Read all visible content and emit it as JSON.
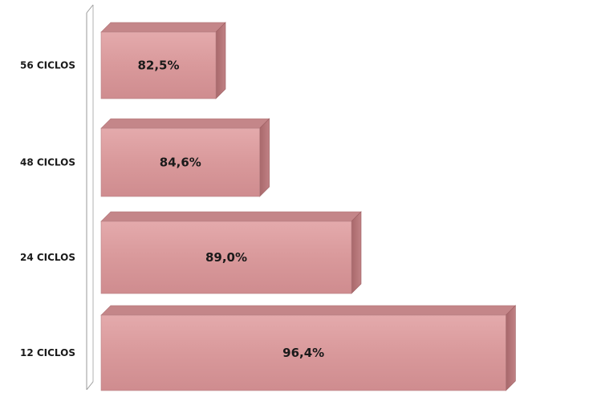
{
  "chart_data": {
    "type": "bar",
    "orientation": "horizontal",
    "style": "3d",
    "categories": [
      "12 CICLOS",
      "24 CICLOS",
      "48 CICLOS",
      "56 CICLOS"
    ],
    "values": [
      96.4,
      89.0,
      84.6,
      82.5
    ],
    "value_labels": [
      "96,4%",
      "89,0%",
      "84,6%",
      "82,5%"
    ],
    "title": "",
    "xlabel": "",
    "ylabel": "",
    "xlim": [
      77,
      100
    ],
    "grid": false,
    "legend": "none",
    "bar_color": "#d9999b",
    "bar_side_color": "#b57477",
    "bar_top_color": "#c48689"
  }
}
